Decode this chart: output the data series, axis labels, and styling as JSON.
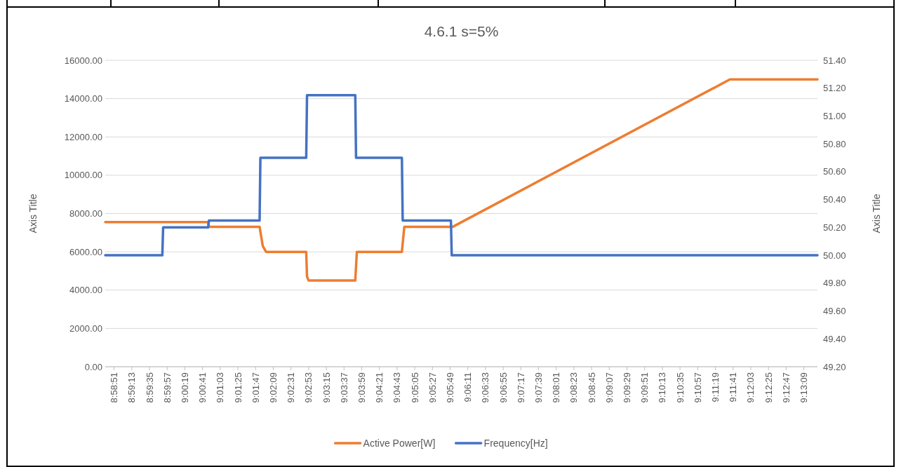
{
  "chart_data": {
    "type": "line",
    "title": "4.6.1 s=5%",
    "ylabel": "Axis Title",
    "y2label": "Axis Title",
    "xlim": [
      8.97778,
      9.22389
    ],
    "xticks": [
      {
        "value": 8.98083,
        "label": "8:58:51"
      },
      {
        "value": 8.98694,
        "label": "8:59:13"
      },
      {
        "value": 8.99306,
        "label": "8:59:35"
      },
      {
        "value": 8.99917,
        "label": "8:59:57"
      },
      {
        "value": 9.00528,
        "label": "9:00:19"
      },
      {
        "value": 9.01139,
        "label": "9:00:41"
      },
      {
        "value": 9.0175,
        "label": "9:01:03"
      },
      {
        "value": 9.02361,
        "label": "9:01:25"
      },
      {
        "value": 9.02972,
        "label": "9:01:47"
      },
      {
        "value": 9.03583,
        "label": "9:02:09"
      },
      {
        "value": 9.04194,
        "label": "9:02:31"
      },
      {
        "value": 9.04806,
        "label": "9:02:53"
      },
      {
        "value": 9.05417,
        "label": "9:03:15"
      },
      {
        "value": 9.06028,
        "label": "9:03:37"
      },
      {
        "value": 9.06639,
        "label": "9:03:59"
      },
      {
        "value": 9.0725,
        "label": "9:04:21"
      },
      {
        "value": 9.07861,
        "label": "9:04:43"
      },
      {
        "value": 9.08472,
        "label": "9:05:05"
      },
      {
        "value": 9.09083,
        "label": "9:05:27"
      },
      {
        "value": 9.09694,
        "label": "9:05:49"
      },
      {
        "value": 9.10306,
        "label": "9:06:11"
      },
      {
        "value": 9.10917,
        "label": "9:06:33"
      },
      {
        "value": 9.11528,
        "label": "9:06:55"
      },
      {
        "value": 9.12139,
        "label": "9:07:17"
      },
      {
        "value": 9.1275,
        "label": "9:07:39"
      },
      {
        "value": 9.13361,
        "label": "9:08:01"
      },
      {
        "value": 9.13972,
        "label": "9:08:23"
      },
      {
        "value": 9.14583,
        "label": "9:08:45"
      },
      {
        "value": 9.15194,
        "label": "9:09:07"
      },
      {
        "value": 9.15806,
        "label": "9:09:29"
      },
      {
        "value": 9.16417,
        "label": "9:09:51"
      },
      {
        "value": 9.17028,
        "label": "9:10:13"
      },
      {
        "value": 9.17639,
        "label": "9:10:35"
      },
      {
        "value": 9.1825,
        "label": "9:10:57"
      },
      {
        "value": 9.18861,
        "label": "9:11:19"
      },
      {
        "value": 9.19472,
        "label": "9:11:41"
      },
      {
        "value": 9.20083,
        "label": "9:12:03"
      },
      {
        "value": 9.20694,
        "label": "9:12:25"
      },
      {
        "value": 9.21306,
        "label": "9:12:47"
      },
      {
        "value": 9.21917,
        "label": "9:13:09"
      }
    ],
    "ylim": [
      0,
      16000
    ],
    "yticks": [
      {
        "value": 0,
        "label": "0.00"
      },
      {
        "value": 2000,
        "label": "2000.00"
      },
      {
        "value": 4000,
        "label": "4000.00"
      },
      {
        "value": 6000,
        "label": "6000.00"
      },
      {
        "value": 8000,
        "label": "8000.00"
      },
      {
        "value": 10000,
        "label": "10000.00"
      },
      {
        "value": 12000,
        "label": "12000.00"
      },
      {
        "value": 14000,
        "label": "14000.00"
      },
      {
        "value": 16000,
        "label": "16000.00"
      }
    ],
    "y2lim": [
      49.2,
      51.4
    ],
    "y2ticks": [
      {
        "value": 49.2,
        "label": "49.20"
      },
      {
        "value": 49.4,
        "label": "49.40"
      },
      {
        "value": 49.6,
        "label": "49.60"
      },
      {
        "value": 49.8,
        "label": "49.80"
      },
      {
        "value": 50,
        "label": "50.00"
      },
      {
        "value": 50.2,
        "label": "50.20"
      },
      {
        "value": 50.4,
        "label": "50.40"
      },
      {
        "value": 50.6,
        "label": "50.60"
      },
      {
        "value": 50.8,
        "label": "50.80"
      },
      {
        "value": 51,
        "label": "51.00"
      },
      {
        "value": 51.2,
        "label": "51.20"
      },
      {
        "value": 51.4,
        "label": "51.40"
      }
    ],
    "grid": "y",
    "legend": "bottom",
    "marker": "none",
    "line_style": "solid",
    "series": [
      {
        "name": "Active Power[W]",
        "color": "#ed7d31",
        "x": [
          8.97778,
          9.01333,
          9.01361,
          9.03111,
          9.03222,
          9.03333,
          9.04722,
          9.0475,
          9.04806,
          9.06417,
          9.06472,
          9.08028,
          9.08111,
          9.09778,
          9.19361,
          9.22389
        ],
        "values": [
          7550,
          7550,
          7300,
          7300,
          6300,
          6000,
          6000,
          4700,
          4500,
          4500,
          6000,
          6000,
          7300,
          7300,
          15000,
          15000
        ]
      },
      {
        "name": "Frequency[Hz]",
        "color": "#4472c4",
        "axis": "y2",
        "x": [
          8.97778,
          8.9975,
          8.99778,
          9.01333,
          9.01361,
          9.03111,
          9.03139,
          9.04722,
          9.0475,
          9.06417,
          9.06444,
          9.08028,
          9.08056,
          9.09722,
          9.0975,
          9.22389
        ],
        "values": [
          50,
          50,
          50.2,
          50.2,
          50.25,
          50.25,
          50.7,
          50.7,
          51.15,
          51.15,
          50.7,
          50.7,
          50.25,
          50.25,
          50,
          50
        ]
      }
    ]
  }
}
